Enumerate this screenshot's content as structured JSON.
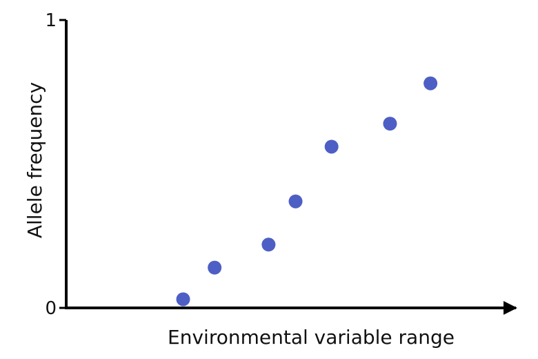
{
  "chart_data": {
    "type": "scatter",
    "title": "",
    "xlabel": "Environmental variable range",
    "ylabel": "Allele frequency",
    "xlim": [
      0,
      1
    ],
    "ylim": [
      0,
      1
    ],
    "y_ticks": [
      {
        "value": 0,
        "label": "0"
      },
      {
        "value": 1,
        "label": "1"
      }
    ],
    "x_ticks": [],
    "grid": false,
    "x_axis_arrow": true,
    "marker_color": "#4d5fc4",
    "axis_color": "#000000",
    "series": [
      {
        "x": [
          0.26,
          0.33,
          0.45,
          0.51,
          0.59,
          0.72,
          0.81
        ],
        "y": [
          0.03,
          0.14,
          0.22,
          0.37,
          0.56,
          0.64,
          0.78
        ]
      }
    ]
  }
}
